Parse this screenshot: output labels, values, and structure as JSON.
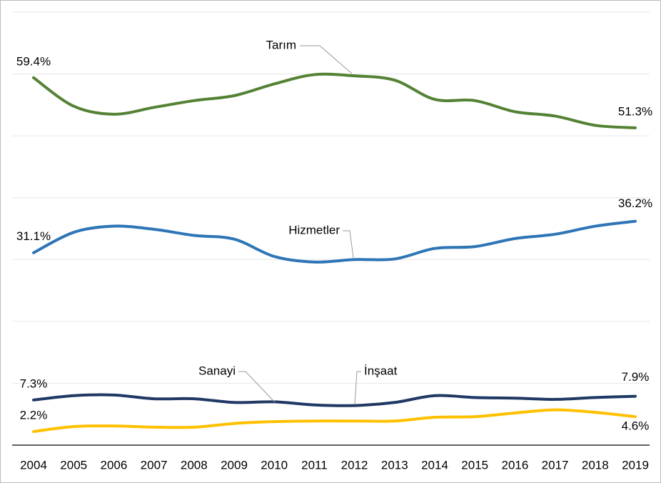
{
  "chart_data": {
    "type": "line",
    "categories": [
      "2004",
      "2005",
      "2006",
      "2007",
      "2008",
      "2009",
      "2010",
      "2011",
      "2012",
      "2013",
      "2014",
      "2015",
      "2016",
      "2017",
      "2018",
      "2019"
    ],
    "ylim": [
      0,
      70
    ],
    "yticks": [
      0,
      10,
      20,
      30,
      40,
      50,
      60,
      70
    ],
    "grid": true,
    "series": [
      {
        "name": "Tarım",
        "color": "#548235",
        "values": [
          59.4,
          54.8,
          53.5,
          54.6,
          55.7,
          56.5,
          58.4,
          59.9,
          59.7,
          59.0,
          55.9,
          55.7,
          53.9,
          53.2,
          51.7,
          51.3
        ],
        "value_labels": [
          "59.4%",
          null,
          null,
          null,
          null,
          null,
          null,
          null,
          null,
          null,
          null,
          null,
          null,
          null,
          null,
          "51.3%"
        ]
      },
      {
        "name": "Hizmetler",
        "color": "#2e75b6",
        "values": [
          31.1,
          34.4,
          35.4,
          34.9,
          33.9,
          33.3,
          30.5,
          29.6,
          30.0,
          30.1,
          31.8,
          32.1,
          33.4,
          34.1,
          35.4,
          36.2
        ],
        "value_labels": [
          "31.1%",
          null,
          null,
          null,
          null,
          null,
          null,
          null,
          null,
          null,
          null,
          null,
          null,
          null,
          null,
          "36.2%"
        ]
      },
      {
        "name": "Sanayi",
        "color": "#203864",
        "values": [
          7.3,
          8.0,
          8.1,
          7.5,
          7.5,
          6.9,
          7.0,
          6.5,
          6.4,
          6.9,
          8.0,
          7.7,
          7.6,
          7.4,
          7.7,
          7.9
        ],
        "value_labels": [
          "7.3%",
          null,
          null,
          null,
          null,
          null,
          null,
          null,
          null,
          null,
          null,
          null,
          null,
          null,
          null,
          "7.9%"
        ]
      },
      {
        "name": "İnşaat",
        "color": "#ffc000",
        "values": [
          2.2,
          3.0,
          3.1,
          2.9,
          2.9,
          3.5,
          3.8,
          3.9,
          3.9,
          3.9,
          4.5,
          4.6,
          5.2,
          5.7,
          5.3,
          4.6
        ],
        "value_labels": [
          "2.2%",
          null,
          null,
          null,
          null,
          null,
          null,
          null,
          null,
          null,
          null,
          null,
          null,
          null,
          null,
          "4.6%"
        ]
      }
    ]
  }
}
